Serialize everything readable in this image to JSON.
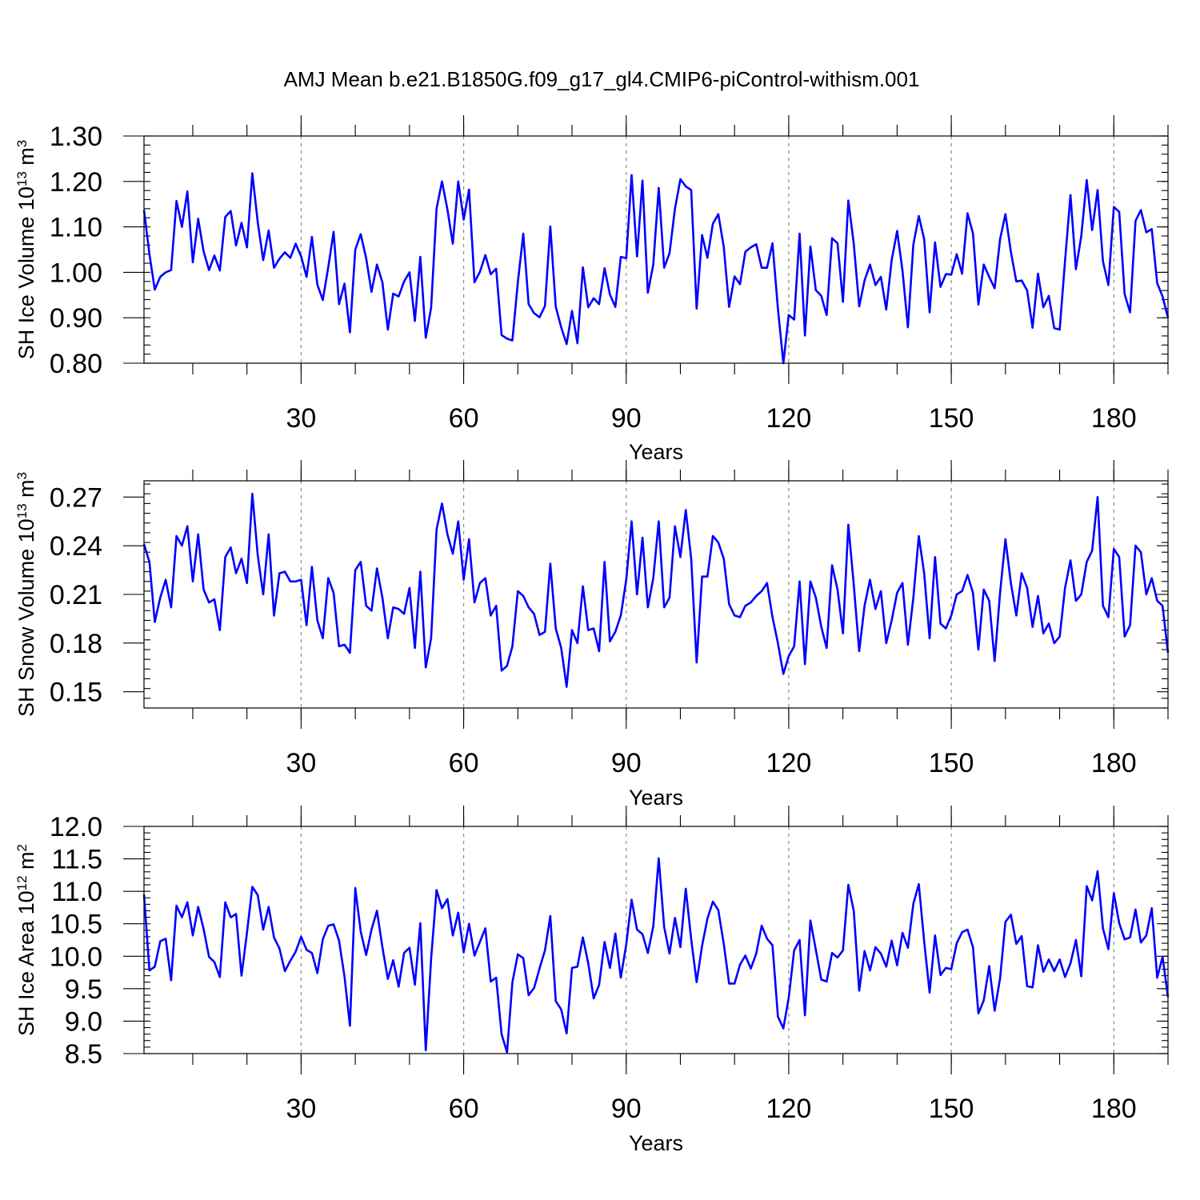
{
  "title": "AMJ Mean b.e21.B1850G.f09_g17_gl4.CMIP6-piControl-withism.001",
  "colors": {
    "series": "#0000ff",
    "grid": "#8a8a8a",
    "axis": "#000000"
  },
  "chart_data": [
    {
      "type": "line",
      "xlabel": "Years",
      "ylabel_main": "SH Ice Volume 10",
      "ylabel_sup": "13",
      "ylabel_unit": " m",
      "ylabel_unit_sup": "3",
      "xlim": [
        1,
        190
      ],
      "ylim": [
        0.8,
        1.3
      ],
      "xticks": [
        30,
        60,
        90,
        120,
        150,
        180
      ],
      "xtick_labels": [
        "30",
        "60",
        "90",
        "120",
        "150",
        "180"
      ],
      "yticks": [
        0.8,
        0.9,
        1.0,
        1.1,
        1.2,
        1.3
      ],
      "ytick_labels": [
        "0.80",
        "0.90",
        "1.00",
        "1.10",
        "1.20",
        "1.30"
      ],
      "grid": "vertical dashed at x ticks",
      "x_start": 1,
      "values": [
        1.137,
        1.04,
        0.962,
        0.99,
        1.0,
        1.005,
        1.157,
        1.1,
        1.178,
        1.022,
        1.118,
        1.046,
        1.005,
        1.037,
        1.004,
        1.122,
        1.135,
        1.059,
        1.109,
        1.055,
        1.218,
        1.11,
        1.027,
        1.092,
        1.01,
        1.03,
        1.044,
        1.032,
        1.063,
        1.035,
        0.99,
        1.078,
        0.973,
        0.939,
        1.011,
        1.089,
        0.93,
        0.975,
        0.868,
        1.05,
        1.084,
        1.031,
        0.957,
        1.017,
        0.978,
        0.874,
        0.953,
        0.947,
        0.98,
        1.0,
        0.893,
        1.034,
        0.856,
        0.922,
        1.14,
        1.2,
        1.138,
        1.063,
        1.2,
        1.116,
        1.182,
        0.978,
        1.001,
        1.038,
        0.996,
        1.008,
        0.862,
        0.854,
        0.85,
        0.978,
        1.085,
        0.93,
        0.91,
        0.901,
        0.926,
        1.101,
        0.924,
        0.879,
        0.842,
        0.915,
        0.844,
        1.011,
        0.923,
        0.943,
        0.93,
        1.009,
        0.951,
        0.924,
        1.034,
        1.031,
        1.214,
        1.035,
        1.202,
        0.955,
        1.017,
        1.186,
        1.01,
        1.042,
        1.14,
        1.205,
        1.189,
        1.181,
        0.92,
        1.082,
        1.032,
        1.107,
        1.128,
        1.056,
        0.924,
        0.991,
        0.974,
        1.045,
        1.055,
        1.062,
        1.01,
        1.01,
        1.064,
        0.92,
        0.8,
        0.906,
        0.896,
        1.085,
        0.861,
        1.057,
        0.961,
        0.948,
        0.906,
        1.075,
        1.064,
        0.935,
        1.158,
        1.063,
        0.925,
        0.982,
        1.017,
        0.972,
        0.99,
        0.918,
        1.027,
        1.091,
        1.004,
        0.879,
        1.061,
        1.124,
        1.073,
        0.912,
        1.066,
        0.968,
        0.996,
        0.995,
        1.04,
        0.997,
        1.13,
        1.086,
        0.929,
        1.017,
        0.99,
        0.965,
        1.073,
        1.128,
        1.045,
        0.98,
        0.982,
        0.96,
        0.878,
        0.997,
        0.923,
        0.948,
        0.877,
        0.874,
        1.025,
        1.17,
        1.007,
        1.08,
        1.203,
        1.093,
        1.181,
        1.024,
        0.972,
        1.144,
        1.133,
        0.952,
        0.912,
        1.113,
        1.137,
        1.088,
        1.095,
        0.976,
        0.947,
        0.9
      ]
    },
    {
      "type": "line",
      "xlabel": "Years",
      "ylabel_main": "SH Snow Volume 10",
      "ylabel_sup": "13",
      "ylabel_unit": " m",
      "ylabel_unit_sup": "3",
      "xlim": [
        1,
        190
      ],
      "ylim": [
        0.14,
        0.28
      ],
      "xticks": [
        30,
        60,
        90,
        120,
        150,
        180
      ],
      "xtick_labels": [
        "30",
        "60",
        "90",
        "120",
        "150",
        "180"
      ],
      "yticks": [
        0.15,
        0.18,
        0.21,
        0.24,
        0.27
      ],
      "ytick_labels": [
        "0.15",
        "0.18",
        "0.21",
        "0.24",
        "0.27"
      ],
      "grid": "vertical dashed at x ticks",
      "x_start": 1,
      "values": [
        0.241,
        0.23,
        0.193,
        0.208,
        0.219,
        0.202,
        0.246,
        0.24,
        0.252,
        0.218,
        0.247,
        0.213,
        0.205,
        0.207,
        0.188,
        0.233,
        0.239,
        0.223,
        0.232,
        0.217,
        0.272,
        0.234,
        0.21,
        0.247,
        0.197,
        0.223,
        0.224,
        0.218,
        0.218,
        0.219,
        0.191,
        0.227,
        0.194,
        0.183,
        0.22,
        0.211,
        0.178,
        0.179,
        0.174,
        0.225,
        0.23,
        0.203,
        0.2,
        0.226,
        0.208,
        0.183,
        0.202,
        0.201,
        0.198,
        0.214,
        0.177,
        0.224,
        0.165,
        0.183,
        0.25,
        0.266,
        0.247,
        0.235,
        0.255,
        0.219,
        0.244,
        0.205,
        0.217,
        0.22,
        0.197,
        0.203,
        0.163,
        0.166,
        0.178,
        0.212,
        0.209,
        0.202,
        0.198,
        0.185,
        0.187,
        0.229,
        0.189,
        0.177,
        0.153,
        0.188,
        0.18,
        0.215,
        0.188,
        0.189,
        0.175,
        0.23,
        0.181,
        0.187,
        0.197,
        0.219,
        0.255,
        0.21,
        0.245,
        0.202,
        0.22,
        0.255,
        0.202,
        0.208,
        0.252,
        0.233,
        0.262,
        0.232,
        0.168,
        0.221,
        0.221,
        0.246,
        0.242,
        0.232,
        0.204,
        0.197,
        0.196,
        0.203,
        0.205,
        0.209,
        0.212,
        0.217,
        0.196,
        0.18,
        0.161,
        0.172,
        0.178,
        0.218,
        0.167,
        0.218,
        0.208,
        0.19,
        0.177,
        0.228,
        0.213,
        0.186,
        0.253,
        0.216,
        0.175,
        0.203,
        0.219,
        0.201,
        0.212,
        0.18,
        0.194,
        0.211,
        0.217,
        0.179,
        0.208,
        0.246,
        0.223,
        0.183,
        0.233,
        0.192,
        0.189,
        0.197,
        0.21,
        0.212,
        0.222,
        0.211,
        0.176,
        0.213,
        0.206,
        0.169,
        0.211,
        0.244,
        0.217,
        0.197,
        0.223,
        0.214,
        0.19,
        0.209,
        0.186,
        0.192,
        0.18,
        0.184,
        0.214,
        0.231,
        0.206,
        0.21,
        0.23,
        0.237,
        0.27,
        0.203,
        0.196,
        0.238,
        0.233,
        0.184,
        0.191,
        0.24,
        0.236,
        0.21,
        0.22,
        0.206,
        0.203,
        0.174
      ]
    },
    {
      "type": "line",
      "xlabel": "Years",
      "ylabel_main": "SH Ice Area 10",
      "ylabel_sup": "12",
      "ylabel_unit": " m",
      "ylabel_unit_sup": "2",
      "xlim": [
        1,
        190
      ],
      "ylim": [
        8.5,
        12.0
      ],
      "xticks": [
        30,
        60,
        90,
        120,
        150,
        180
      ],
      "xtick_labels": [
        "30",
        "60",
        "90",
        "120",
        "150",
        "180"
      ],
      "yticks": [
        8.5,
        9.0,
        9.5,
        10.0,
        10.5,
        11.0,
        11.5,
        12.0
      ],
      "ytick_labels": [
        "8.5",
        "9.0",
        "9.5",
        "10.0",
        "10.5",
        "11.0",
        "11.5",
        "12.0"
      ],
      "grid": "vertical dashed at x ticks",
      "x_start": 1,
      "values": [
        10.95,
        9.78,
        9.84,
        10.23,
        10.27,
        9.63,
        10.78,
        10.6,
        10.83,
        10.32,
        10.76,
        10.42,
        9.99,
        9.91,
        9.68,
        10.83,
        10.6,
        10.65,
        9.7,
        10.36,
        11.07,
        10.94,
        10.41,
        10.76,
        10.29,
        10.12,
        9.77,
        9.93,
        10.07,
        10.3,
        10.1,
        10.05,
        9.74,
        10.26,
        10.47,
        10.49,
        10.24,
        9.69,
        8.93,
        11.05,
        10.38,
        10.02,
        10.41,
        10.7,
        10.14,
        9.65,
        9.94,
        9.53,
        10.05,
        10.13,
        9.56,
        10.51,
        8.55,
        9.96,
        11.02,
        10.74,
        10.88,
        10.32,
        10.67,
        10.06,
        10.5,
        10.01,
        10.22,
        10.43,
        9.61,
        9.67,
        8.8,
        8.52,
        9.6,
        10.03,
        9.97,
        9.4,
        9.51,
        9.81,
        10.09,
        10.62,
        9.31,
        9.18,
        8.81,
        9.82,
        9.84,
        10.29,
        9.89,
        9.35,
        9.56,
        10.22,
        9.82,
        10.35,
        9.67,
        10.18,
        10.87,
        10.41,
        10.34,
        10.05,
        10.46,
        11.51,
        10.45,
        10.04,
        10.59,
        10.14,
        11.04,
        10.26,
        9.6,
        10.16,
        10.58,
        10.84,
        10.71,
        10.19,
        9.58,
        9.58,
        9.87,
        10.01,
        9.81,
        10.04,
        10.47,
        10.27,
        10.17,
        9.07,
        8.89,
        9.36,
        10.09,
        10.25,
        9.09,
        10.55,
        10.1,
        9.64,
        9.61,
        10.05,
        9.98,
        10.09,
        11.1,
        10.7,
        9.47,
        10.08,
        9.78,
        10.14,
        10.04,
        9.84,
        10.24,
        9.86,
        10.36,
        10.13,
        10.81,
        11.11,
        10.23,
        9.44,
        10.32,
        9.71,
        9.82,
        9.8,
        10.2,
        10.37,
        10.41,
        10.14,
        9.12,
        9.32,
        9.85,
        9.16,
        9.66,
        10.53,
        10.64,
        10.19,
        10.31,
        9.54,
        9.52,
        10.17,
        9.76,
        9.95,
        9.77,
        9.95,
        9.68,
        9.89,
        10.25,
        9.69,
        11.08,
        10.86,
        11.31,
        10.43,
        10.11,
        10.97,
        10.51,
        10.26,
        10.29,
        10.72,
        10.21,
        10.32,
        10.74,
        9.67,
        9.99,
        9.37
      ]
    }
  ]
}
